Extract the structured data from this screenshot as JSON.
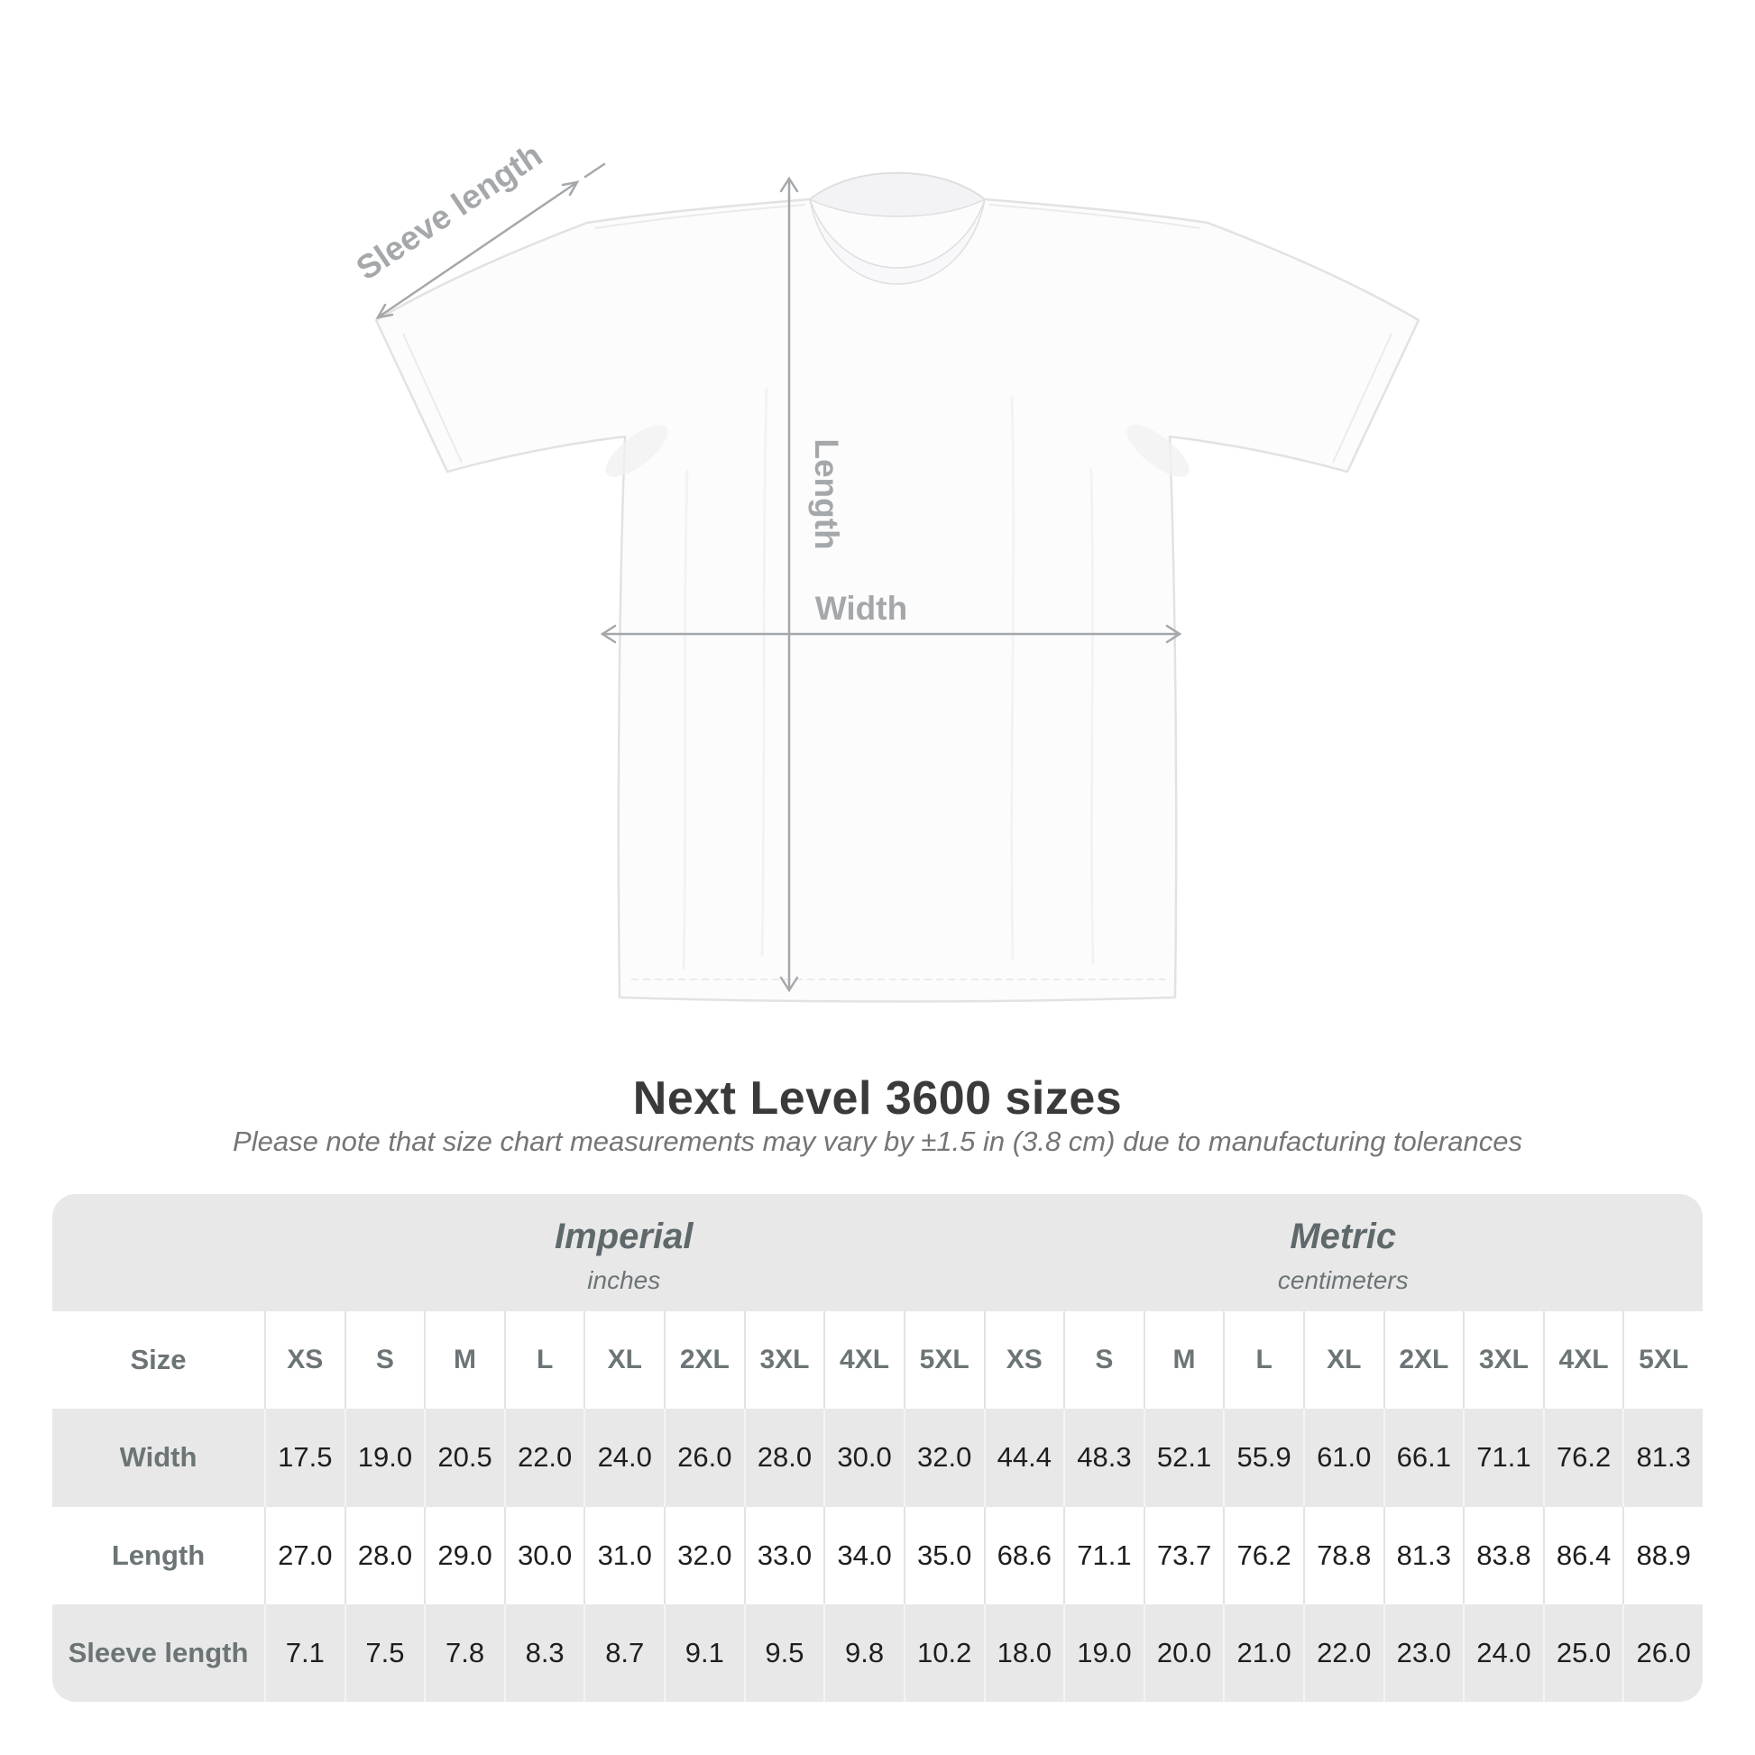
{
  "title": "Next Level 3600 sizes",
  "subtitle": "Please note that size chart measurements may vary by ±1.5 in (3.8 cm) due to manufacturing tolerances",
  "diagram": {
    "sleeve_label": "Sleeve length",
    "length_label": "Length",
    "width_label": "Width"
  },
  "table": {
    "size_label": "Size",
    "groups": [
      {
        "name": "Imperial",
        "unit": "inches"
      },
      {
        "name": "Metric",
        "unit": "centimeters"
      }
    ],
    "sizes": [
      "XS",
      "S",
      "M",
      "L",
      "XL",
      "2XL",
      "3XL",
      "4XL",
      "5XL"
    ],
    "rows": [
      {
        "label": "Width",
        "imperial": [
          "17.5",
          "19.0",
          "20.5",
          "22.0",
          "24.0",
          "26.0",
          "28.0",
          "30.0",
          "32.0"
        ],
        "metric": [
          "44.4",
          "48.3",
          "52.1",
          "55.9",
          "61.0",
          "66.1",
          "71.1",
          "76.2",
          "81.3"
        ]
      },
      {
        "label": "Length",
        "imperial": [
          "27.0",
          "28.0",
          "29.0",
          "30.0",
          "31.0",
          "32.0",
          "33.0",
          "34.0",
          "35.0"
        ],
        "metric": [
          "68.6",
          "71.1",
          "73.7",
          "76.2",
          "78.8",
          "81.3",
          "83.8",
          "86.4",
          "88.9"
        ]
      },
      {
        "label": "Sleeve length",
        "imperial": [
          "7.1",
          "7.5",
          "7.8",
          "8.3",
          "8.7",
          "9.1",
          "9.5",
          "9.8",
          "10.2"
        ],
        "metric": [
          "18.0",
          "19.0",
          "20.0",
          "21.0",
          "22.0",
          "23.0",
          "24.0",
          "25.0",
          "26.0"
        ]
      }
    ]
  },
  "colors": {
    "table_bg": "#e8e8e8",
    "row_white": "#ffffff",
    "annotation_gray": "#a5a8aa",
    "label_gray": "#6c7476",
    "value_dark": "#1e1e1e",
    "title_dark": "#3a3a3a",
    "shirt_fill": "#fcfcfd",
    "shirt_outline": "#e2e2e4"
  }
}
